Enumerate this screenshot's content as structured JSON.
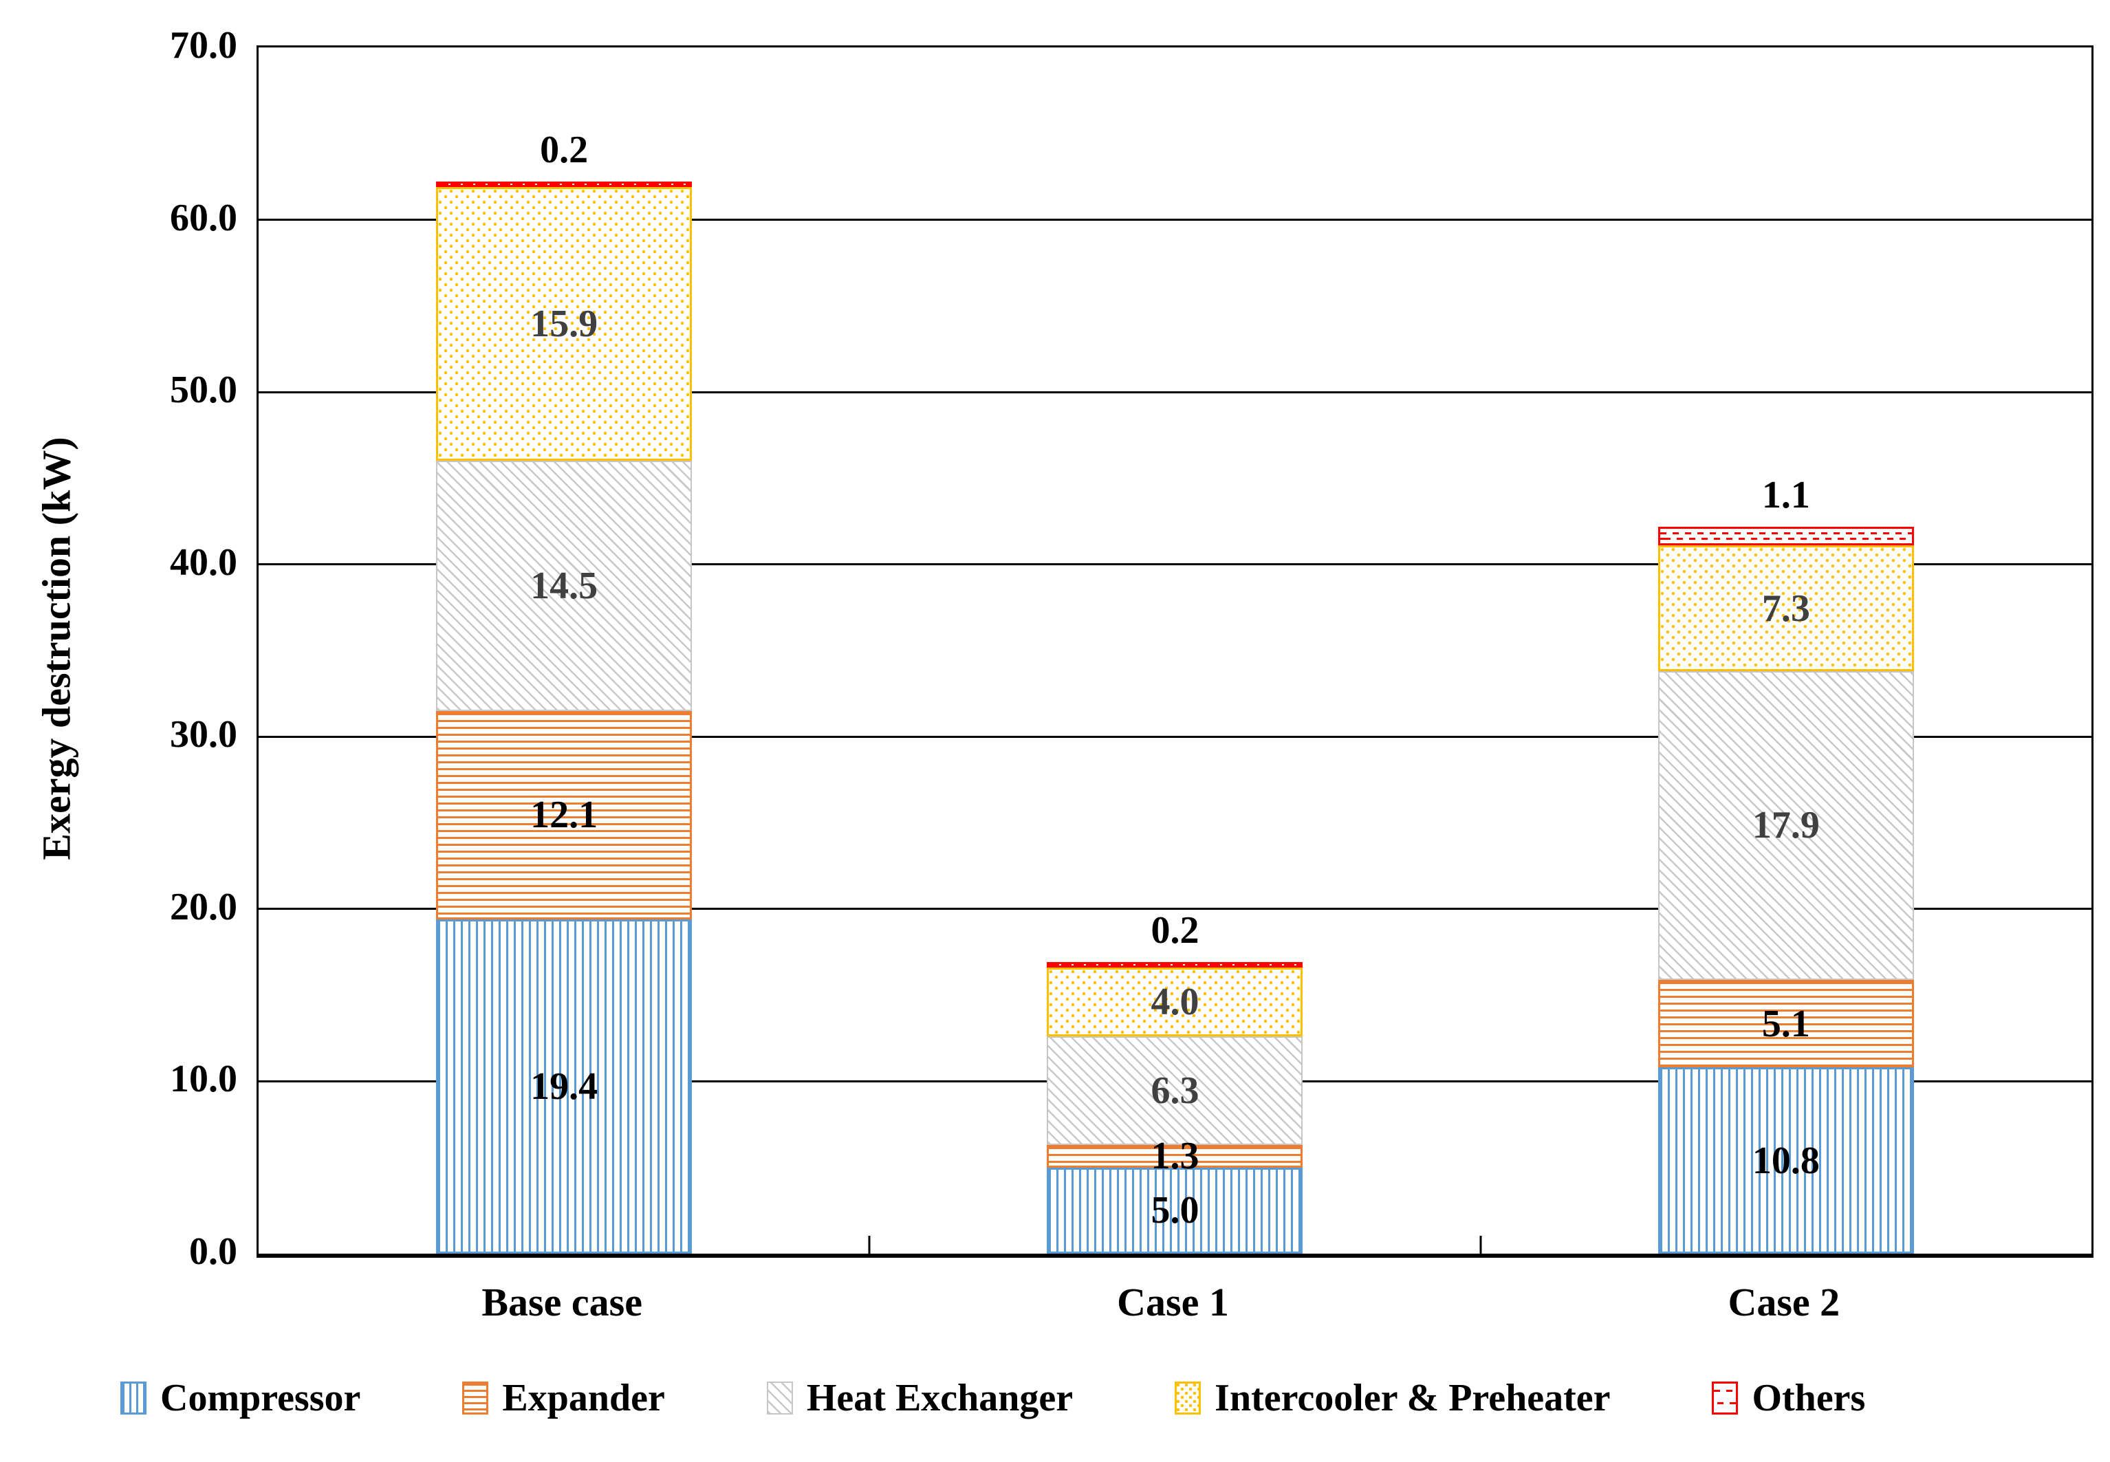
{
  "figure": {
    "background": "#FFFFFF"
  },
  "y_axis": {
    "title": "Exergy destruction (kW)",
    "min": 0,
    "max": 70,
    "tick_step": 10,
    "tick_labels": [
      "0.0",
      "10.0",
      "20.0",
      "30.0",
      "40.0",
      "50.0",
      "60.0",
      "70.0"
    ]
  },
  "x_axis": {
    "categories": [
      "Base case",
      "Case 1",
      "Case 2"
    ]
  },
  "legend": {
    "position": "bottom",
    "items": [
      "Compressor",
      "Expander",
      "Heat Exchanger",
      "Intercooler & Preheater",
      "Others"
    ]
  },
  "colors": {
    "compressor": "#5B9BD5",
    "expander": "#ED7D31",
    "heat_exchanger": "#BFBFBF",
    "intercooler_preheater": "#FFC000",
    "others": "#FF0000",
    "gridline": "#000000",
    "label_dark_gray": "#404040",
    "label_black": "#000000"
  },
  "chart_data": {
    "type": "bar",
    "stacked": true,
    "grid": true,
    "legend_position": "bottom",
    "title": "",
    "xlabel": "",
    "ylabel": "Exergy destruction (kW)",
    "ylim": [
      0,
      70
    ],
    "categories": [
      "Base case",
      "Case 1",
      "Case 2"
    ],
    "series": [
      {
        "name": "Compressor",
        "pattern": "vertical-stripes",
        "color": "#5B9BD5",
        "values": [
          19.4,
          5.0,
          10.8
        ],
        "labels": [
          "19.4",
          "5.0",
          "10.8"
        ],
        "label_color": "#000000",
        "label_outside": false
      },
      {
        "name": "Expander",
        "pattern": "horizontal-stripes",
        "color": "#ED7D31",
        "values": [
          12.1,
          1.3,
          5.1
        ],
        "labels": [
          "12.1",
          "1.3",
          "5.1"
        ],
        "label_color": "#000000",
        "label_outside": false
      },
      {
        "name": "Heat Exchanger",
        "pattern": "diagonal-hatch",
        "color": "#BFBFBF",
        "values": [
          14.5,
          6.3,
          17.9
        ],
        "labels": [
          "14.5",
          "6.3",
          "17.9"
        ],
        "label_color": "#404040",
        "label_outside": false
      },
      {
        "name": "Intercooler & Preheater",
        "pattern": "dots",
        "color": "#FFC000",
        "values": [
          15.9,
          4.0,
          7.3
        ],
        "labels": [
          "15.9",
          "4.0",
          "7.3"
        ],
        "label_color": "#404040",
        "label_outside": false
      },
      {
        "name": "Others",
        "pattern": "red-wave",
        "color": "#FF0000",
        "values": [
          0.2,
          0.2,
          1.1
        ],
        "labels": [
          "0.2",
          "0.2",
          "1.1"
        ],
        "label_color": "#000000",
        "label_outside": true
      }
    ],
    "totals": [
      62.1,
      16.8,
      42.2
    ]
  }
}
